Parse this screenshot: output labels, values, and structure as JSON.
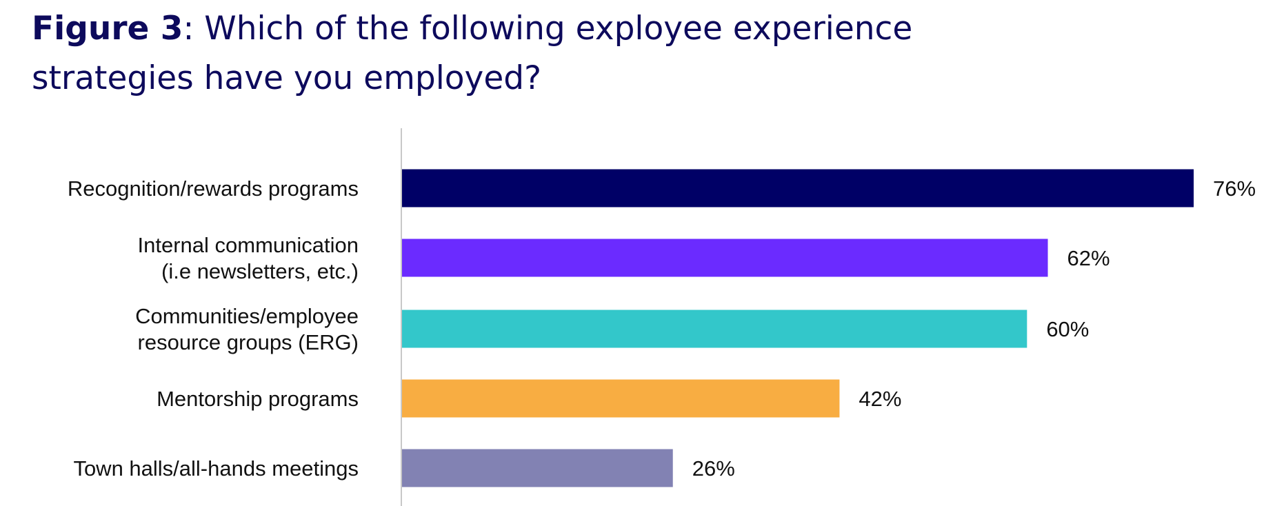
{
  "title": {
    "prefix": "Figure 3",
    "text": ": Which of the following exployee experience strategies have you employed?"
  },
  "chart_data": {
    "type": "bar",
    "orientation": "horizontal",
    "categories": [
      [
        "Recognition/rewards programs"
      ],
      [
        "Internal communication",
        "(i.e newsletters, etc.)"
      ],
      [
        "Communities/employee",
        "resource groups (ERG)"
      ],
      [
        "Mentorship programs"
      ],
      [
        "Town halls/all-hands meetings"
      ]
    ],
    "values": [
      76,
      62,
      60,
      42,
      26
    ],
    "value_labels": [
      "76%",
      "62%",
      "60%",
      "42%",
      "26%"
    ],
    "colors": [
      "#000066",
      "#6b2bff",
      "#33c7ca",
      "#f8ad42",
      "#8282b3"
    ],
    "unit": "%",
    "xlim": [
      0,
      76
    ],
    "grid": false,
    "legend": "none"
  }
}
